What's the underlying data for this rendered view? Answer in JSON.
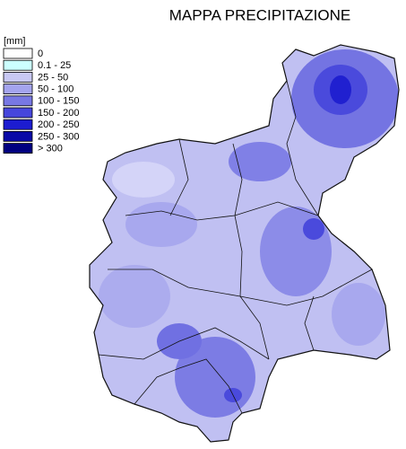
{
  "title": "MAPPA PRECIPITAZIONE",
  "legend": {
    "unit": "[mm]",
    "entries": [
      {
        "label": "0",
        "color": "#ffffff"
      },
      {
        "label": "0.1 - 25",
        "color": "#ccffff"
      },
      {
        "label": "25 - 50",
        "color": "#c8c8f4"
      },
      {
        "label": "50 - 100",
        "color": "#a4a4ee"
      },
      {
        "label": "100 - 150",
        "color": "#7878e4"
      },
      {
        "label": "150 - 200",
        "color": "#4646dc"
      },
      {
        "label": "200 - 250",
        "color": "#1c1cd0"
      },
      {
        "label": "250 - 300",
        "color": "#0a0aa6"
      },
      {
        "label": "> 300",
        "color": "#000080"
      }
    ]
  }
}
